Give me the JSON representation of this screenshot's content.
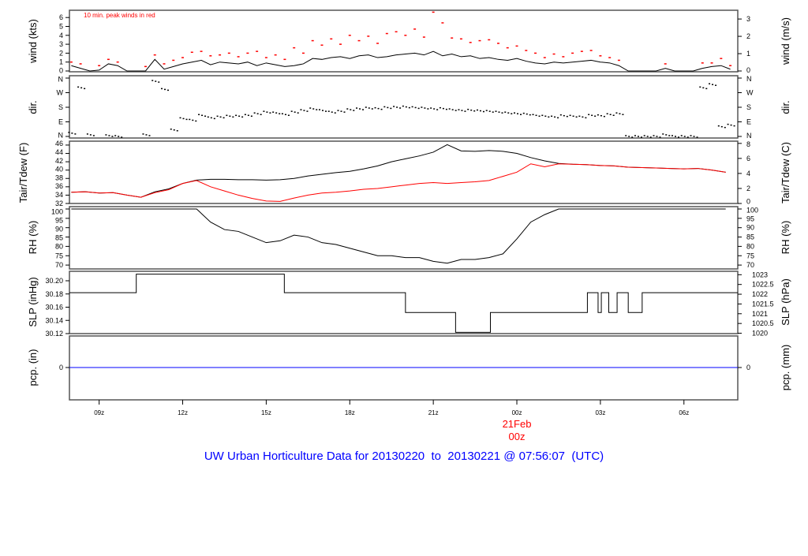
{
  "chart_data": {
    "type": "line",
    "title": "UW Urban Horticulture Data for 20130220  to  20130221 @ 07:56:07  (UTC)",
    "x_range": [
      "07:56",
      "07:56"
    ],
    "x_ticks": [
      "09z",
      "12z",
      "15z",
      "18z",
      "21z",
      "00z",
      "03z",
      "06z"
    ],
    "x_tick_times": [
      "09:00",
      "12:00",
      "15:00",
      "18:00",
      "21:00",
      "00:00",
      "03:00",
      "06:00"
    ],
    "date_marker": {
      "day": "21Feb",
      "hour": "00z",
      "time": "00:00",
      "color": "#ff0000"
    },
    "panels": {
      "wind": {
        "ylabel_left": "wind (kts)",
        "ylabel_right": "wind (m/s)",
        "left_ticks": [
          "0",
          "1",
          "2",
          "3",
          "4",
          "5",
          "6"
        ],
        "right_ticks": [
          "0",
          "1",
          "2",
          "3"
        ],
        "annotation": "10 min. peak winds in red",
        "series_times_step_min": 20,
        "series_start": "08:00",
        "mean_kts": [
          0.6,
          0.3,
          0.0,
          0.1,
          0.8,
          0.6,
          0.0,
          0.0,
          0.0,
          1.3,
          0.2,
          0.5,
          0.8,
          1.0,
          1.2,
          0.7,
          1.0,
          0.9,
          0.8,
          1.0,
          0.6,
          0.9,
          0.7,
          0.5,
          0.6,
          0.8,
          1.4,
          1.3,
          1.5,
          1.6,
          1.4,
          1.7,
          1.8,
          1.5,
          1.6,
          1.8,
          1.9,
          2.0,
          1.8,
          2.2,
          1.7,
          1.9,
          1.6,
          1.7,
          1.4,
          1.5,
          1.3,
          1.2,
          1.4,
          1.1,
          0.9,
          0.8,
          1.0,
          0.9,
          1.0,
          1.1,
          1.2,
          1.0,
          0.9,
          0.6,
          0.0,
          0.0,
          0.0,
          0.0,
          0.3,
          0.0,
          0.0,
          0.0,
          0.3,
          0.5,
          0.6,
          0.2
        ],
        "peak_kts": [
          1.0,
          0.8,
          0.0,
          0.6,
          1.3,
          1.0,
          0.0,
          0.0,
          0.5,
          1.8,
          0.8,
          1.2,
          1.5,
          2.1,
          2.2,
          1.7,
          1.8,
          2.0,
          1.6,
          2.0,
          2.2,
          1.5,
          1.8,
          1.3,
          2.6,
          2.0,
          3.4,
          2.9,
          3.6,
          3.0,
          4.0,
          3.4,
          3.9,
          3.1,
          4.2,
          4.4,
          4.0,
          4.7,
          3.8,
          6.6,
          5.4,
          3.7,
          3.6,
          3.2,
          3.4,
          3.5,
          3.1,
          2.6,
          2.8,
          2.3,
          2.0,
          1.5,
          1.9,
          1.6,
          2.0,
          2.2,
          2.3,
          1.7,
          1.5,
          1.2,
          0.0,
          0.0,
          0.0,
          0.0,
          0.8,
          0.0,
          0.0,
          0.0,
          0.9,
          0.9,
          1.4,
          0.6
        ],
        "mean_color": "#000000",
        "peak_color": "#ff0000"
      },
      "dir": {
        "ylabel_left": "dir.",
        "ylabel_right": "dir.",
        "ticks": [
          "N",
          "E",
          "S",
          "W",
          "N"
        ],
        "tick_degrees": [
          0,
          90,
          180,
          270,
          360
        ],
        "series_times_step_min": 20,
        "series_start": "08:00",
        "degrees": [
          20,
          300,
          10,
          null,
          5,
          0,
          null,
          null,
          10,
          340,
          290,
          40,
          110,
          100,
          130,
          115,
          120,
          125,
          125,
          130,
          140,
          150,
          145,
          135,
          150,
          160,
          170,
          160,
          150,
          155,
          165,
          170,
          175,
          172,
          178,
          180,
          182,
          178,
          175,
          170,
          172,
          165,
          160,
          162,
          158,
          155,
          150,
          145,
          140,
          138,
          130,
          125,
          120,
          128,
          125,
          120,
          130,
          128,
          135,
          140,
          0,
          0,
          0,
          0,
          10,
          0,
          0,
          0,
          300,
          320,
          60,
          70
        ]
      },
      "temp": {
        "ylabel_left": "Tair/Tdew (F)",
        "ylabel_right": "Tair/Tdew (C)",
        "left_ticks": [
          "32",
          "34",
          "36",
          "38",
          "40",
          "42",
          "44",
          "46"
        ],
        "right_ticks": [
          "0",
          "2",
          "4",
          "6",
          "8"
        ],
        "series_times_step_min": 30,
        "series_start": "08:00",
        "tair_f": [
          34.7,
          34.8,
          34.5,
          34.6,
          34.0,
          33.5,
          34.8,
          35.5,
          36.8,
          37.6,
          37.8,
          37.8,
          37.7,
          37.7,
          37.6,
          37.7,
          38.0,
          38.6,
          39.0,
          39.4,
          39.7,
          40.3,
          41.0,
          42.0,
          42.7,
          43.4,
          44.3,
          46.1,
          44.6,
          44.5,
          44.7,
          44.5,
          44.0,
          43.0,
          42.2,
          41.6,
          41.4,
          41.3,
          41.1,
          41.0,
          40.7,
          40.6,
          40.5,
          40.4,
          40.3,
          40.4,
          40.0,
          39.5
        ],
        "tdew_f": [
          34.7,
          34.8,
          34.5,
          34.6,
          34.0,
          33.5,
          34.6,
          35.3,
          36.8,
          37.5,
          36.0,
          35.0,
          34.0,
          33.2,
          32.6,
          32.5,
          33.3,
          34.0,
          34.5,
          34.7,
          35.0,
          35.4,
          35.6,
          36.0,
          36.4,
          36.8,
          37.0,
          36.8,
          37.0,
          37.2,
          37.5,
          38.5,
          39.5,
          41.5,
          40.8,
          41.5,
          41.4,
          41.3,
          41.1,
          41.0,
          40.7,
          40.6,
          40.5,
          40.4,
          40.3,
          40.4,
          40.0,
          39.5
        ],
        "tair_color": "#000000",
        "tdew_color": "#ff0000"
      },
      "rh": {
        "ylabel_left": "RH (%)",
        "ylabel_right": "RH (%)",
        "ticks": [
          "70",
          "75",
          "80",
          "85",
          "90",
          "95",
          "100"
        ],
        "series_times_step_min": 30,
        "series_start": "08:00",
        "rh_pct": [
          100,
          100,
          100,
          100,
          100,
          100,
          100,
          100,
          100,
          100,
          93,
          89,
          88,
          85,
          82,
          83,
          86,
          85,
          82,
          81,
          79,
          77,
          75,
          75,
          74,
          74,
          72,
          71,
          73,
          73,
          74,
          76,
          84,
          93,
          97,
          100,
          100,
          100,
          100,
          100,
          100,
          100,
          100,
          100,
          100,
          100,
          100,
          100
        ]
      },
      "slp": {
        "ylabel_left": "SLP (inHg)",
        "ylabel_right": "SLP (hPa)",
        "left_ticks": [
          "30.12",
          "30.14",
          "30.16",
          "30.18",
          "30.20"
        ],
        "right_ticks": [
          "1020",
          "1020.5",
          "1021",
          "1021.5",
          "1022",
          "1022.5",
          "1023"
        ],
        "steps": [
          [
            "07:56",
            30.182
          ],
          [
            "10:20",
            30.21
          ],
          [
            "15:39",
            30.182
          ],
          [
            "20:00",
            30.152
          ],
          [
            "21:48",
            30.122
          ],
          [
            "23:03",
            30.152
          ],
          [
            "02:32",
            30.182
          ],
          [
            "02:55",
            30.152
          ],
          [
            "03:02",
            30.182
          ],
          [
            "03:18",
            30.152
          ],
          [
            "03:36",
            30.182
          ],
          [
            "04:00",
            30.152
          ],
          [
            "04:30",
            30.182
          ]
        ]
      },
      "pcp": {
        "ylabel_left": "pcp. (in)",
        "ylabel_right": "pcp. (mm)",
        "left_ticks": [
          "0"
        ],
        "right_ticks": [
          "0"
        ],
        "value": 0,
        "color": "#0000ff"
      }
    }
  }
}
